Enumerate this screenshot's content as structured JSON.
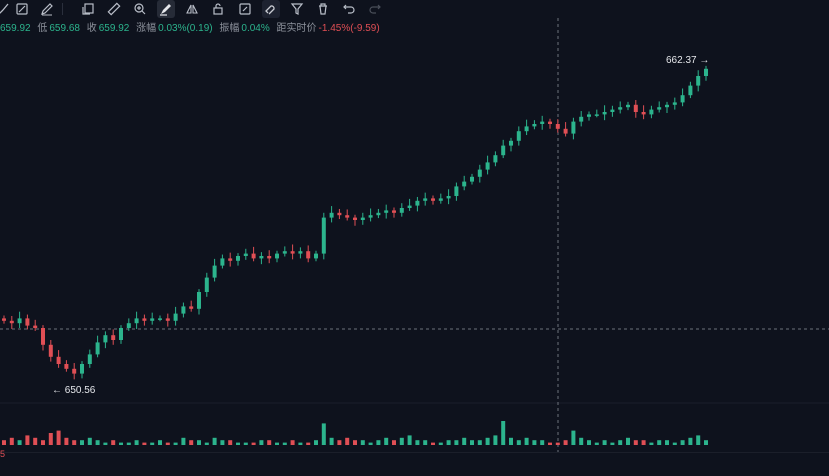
{
  "toolbar": {
    "items": [
      {
        "name": "brush-icon"
      },
      {
        "name": "line-pattern-icon"
      },
      {
        "name": "pencil-icon"
      },
      {
        "name": "copy-icon"
      },
      {
        "name": "ruler-icon"
      },
      {
        "name": "zoom-in-icon"
      },
      {
        "name": "draw-icon"
      },
      {
        "name": "mirror-icon"
      },
      {
        "name": "lock-icon"
      },
      {
        "name": "edit-box-icon"
      },
      {
        "name": "magnet-icon"
      },
      {
        "name": "filter-icon"
      },
      {
        "name": "trash-icon"
      },
      {
        "name": "undo-icon"
      },
      {
        "name": "redo-icon"
      }
    ]
  },
  "info_bar": {
    "open": "659.92",
    "low_label": "低",
    "low": "659.68",
    "close_label": "收",
    "close": "659.92",
    "change_label": "涨幅",
    "change": "0.03%(0.19)",
    "amplitude_label": "振幅",
    "amplitude": "0.04%",
    "realtime_label": "距实时价",
    "realtime": "-1.45%(-9.59)"
  },
  "markers": {
    "high": "662.37",
    "low": "650.56",
    "corner": "5"
  },
  "colors": {
    "up": "#2cb48d",
    "down": "#e04f55",
    "background": "#0e121d",
    "crosshair": "#6c717c"
  },
  "chart_data": {
    "type": "candlestick",
    "y_range_approx": [
      648.5,
      663.5
    ],
    "series": [
      {
        "name": "price",
        "values": [
          651.8,
          651.7,
          651.9,
          651.6,
          651.5,
          650.8,
          650.3,
          650.0,
          649.8,
          649.6,
          650.0,
          650.4,
          650.9,
          651.2,
          651.0,
          651.5,
          651.7,
          651.9,
          651.8,
          651.9,
          651.9,
          651.8,
          652.1,
          652.4,
          652.3,
          653.0,
          653.6,
          654.1,
          654.4,
          654.3,
          654.5,
          654.6,
          654.4,
          654.5,
          654.4,
          654.6,
          654.7,
          654.6,
          654.7,
          654.4,
          654.6,
          656.1,
          656.3,
          656.2,
          656.1,
          656.0,
          656.1,
          656.2,
          656.3,
          656.4,
          656.3,
          656.5,
          656.6,
          656.8,
          656.9,
          656.8,
          656.9,
          657.0,
          657.4,
          657.6,
          657.8,
          658.1,
          658.4,
          658.7,
          659.1,
          659.3,
          659.7,
          659.9,
          660.0,
          660.1,
          660.0,
          659.8,
          659.6,
          660.1,
          660.3,
          660.4,
          660.4,
          660.5,
          660.6,
          660.7,
          660.8,
          660.5,
          660.4,
          660.6,
          660.7,
          660.8,
          660.9,
          661.2,
          661.6,
          662.0,
          662.3
        ]
      },
      {
        "name": "volume",
        "values": [
          2,
          3,
          2,
          4,
          3,
          2,
          5,
          6,
          3,
          2,
          2,
          3,
          2,
          1,
          2,
          1,
          1,
          2,
          1,
          1,
          2,
          1,
          1,
          3,
          2,
          2,
          1,
          3,
          2,
          2,
          1,
          1,
          1,
          2,
          2,
          1,
          1,
          2,
          1,
          1,
          2,
          9,
          3,
          2,
          3,
          2,
          2,
          1,
          2,
          3,
          2,
          3,
          4,
          2,
          2,
          1,
          1,
          2,
          2,
          3,
          2,
          2,
          3,
          4,
          10,
          3,
          2,
          3,
          2,
          2,
          1,
          1,
          2,
          6,
          3,
          2,
          1,
          2,
          1,
          2,
          3,
          2,
          2,
          1,
          2,
          2,
          1,
          2,
          3,
          4,
          2
        ]
      }
    ]
  }
}
